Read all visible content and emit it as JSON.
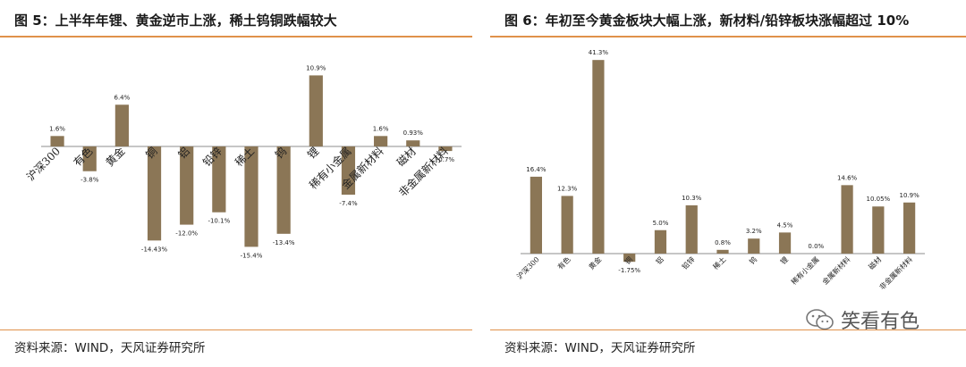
{
  "left": {
    "title": "图 5：上半年年锂、黄金逆市上涨，稀土钨铜跌幅较大",
    "source": "资料来源：WIND，天风证券研究所"
  },
  "right": {
    "title": "图 6：年初至今黄金板块大幅上涨，新材料/铅锌板块涨幅超过 10%",
    "source": "资料来源：WIND，天风证券研究所"
  },
  "watermark": {
    "text": "笑看有色",
    "icon": "wechat-icon"
  },
  "colors": {
    "bar": "#8b7656",
    "rule": "#e0914a"
  },
  "chart_data": [
    {
      "type": "bar",
      "title": "",
      "xlabel": "",
      "ylabel": "",
      "categories": [
        "沪深300",
        "有色",
        "黄金",
        "铜",
        "铝",
        "铅锌",
        "稀土",
        "钨",
        "锂",
        "稀有小金属",
        "金属新材料",
        "磁材",
        "非金属新材料"
      ],
      "values": [
        1.6,
        -3.8,
        6.4,
        -14.43,
        -12.0,
        -10.1,
        -15.4,
        -13.4,
        10.9,
        -7.4,
        1.6,
        0.93,
        -0.7
      ],
      "labels": [
        "1.6%",
        "-3.8%",
        "6.4%",
        "-14.43%",
        "-12.0%",
        "-10.1%",
        "-15.4%",
        "-13.4%",
        "10.9%",
        "-7.4%",
        "1.6%",
        "0.93%",
        "-0.7%"
      ],
      "grid": false,
      "legend": "none"
    },
    {
      "type": "bar",
      "title": "",
      "xlabel": "",
      "ylabel": "",
      "categories": [
        "沪深300",
        "有色",
        "黄金",
        "铜",
        "铝",
        "铅锌",
        "稀土",
        "钨",
        "锂",
        "稀有小金属",
        "金属新材料",
        "磁材",
        "非金属新材料"
      ],
      "values": [
        16.4,
        12.3,
        41.3,
        -1.75,
        5.0,
        10.3,
        0.8,
        3.2,
        4.5,
        0.0,
        14.6,
        10.05,
        10.9
      ],
      "labels": [
        "16.4%",
        "12.3%",
        "41.3%",
        "-1.75%",
        "5.0%",
        "10.3%",
        "0.8%",
        "3.2%",
        "4.5%",
        "0.0%",
        "14.6%",
        "10.05%",
        "10.9%"
      ],
      "grid": false,
      "legend": "none"
    }
  ]
}
